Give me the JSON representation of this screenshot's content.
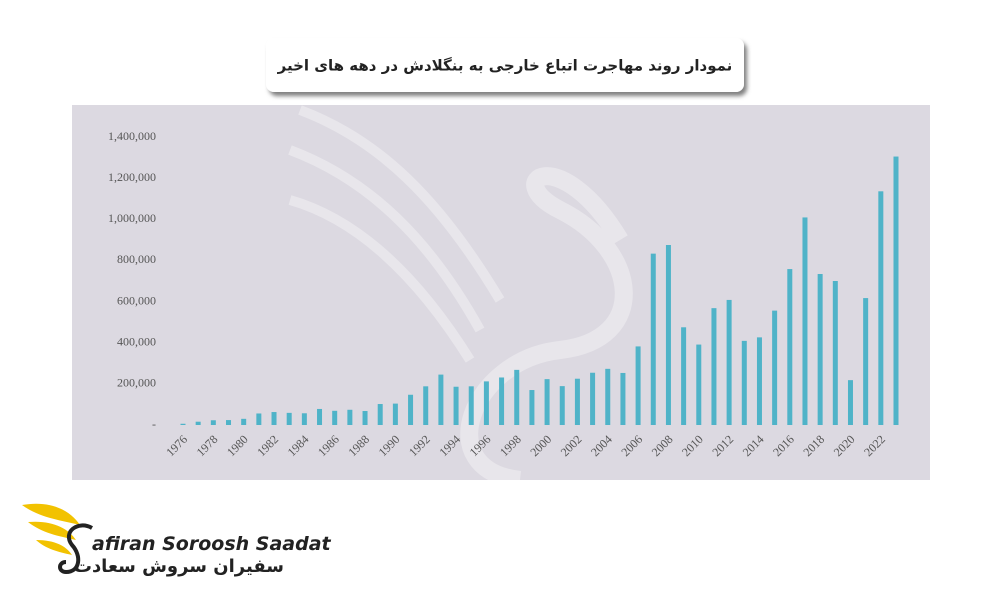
{
  "chart_data": {
    "type": "bar",
    "title": "نمودار روند مهاجرت اتباع خارجی به بنگلادش در دهه های اخیر",
    "brand": "afiran Soroosh Saadat",
    "brand_fa": "سفیران سروش سعادت",
    "categories": [
      "1976",
      null,
      "1978",
      null,
      "1980",
      null,
      "1982",
      null,
      "1984",
      null,
      "1986",
      null,
      "1988",
      null,
      "1990",
      null,
      "1992",
      null,
      "1994",
      null,
      "1996",
      null,
      "1998",
      null,
      "2000",
      null,
      "2002",
      null,
      "2004",
      null,
      "2006",
      null,
      "2008",
      null,
      "2010",
      null,
      "2012",
      null,
      "2014",
      null,
      "2016",
      null,
      "2018",
      null,
      "2020",
      null,
      "2022",
      null
    ],
    "values": [
      6000,
      16000,
      23000,
      24000,
      30000,
      56000,
      63000,
      59000,
      57000,
      78000,
      69000,
      74000,
      68000,
      102000,
      104000,
      147000,
      188000,
      245000,
      186000,
      188000,
      212000,
      231000,
      268000,
      170000,
      223000,
      189000,
      225000,
      254000,
      273000,
      253000,
      382000,
      833000,
      875000,
      475000,
      391000,
      568000,
      608000,
      409000,
      426000,
      556000,
      758000,
      1009000,
      734000,
      700000,
      218000,
      617000,
      1136000,
      1305000
    ],
    "color": "#4fb3c8",
    "ylim": [
      0,
      1400000
    ],
    "yticks": [
      {
        "value": 0,
        "label": "-"
      },
      {
        "value": 200000,
        "label": "200,000"
      },
      {
        "value": 400000,
        "label": "400,000"
      },
      {
        "value": 600000,
        "label": "600,000"
      },
      {
        "value": 800000,
        "label": "800,000"
      },
      {
        "value": 1000000,
        "label": "1,000,000"
      },
      {
        "value": 1200000,
        "label": "1,200,000"
      },
      {
        "value": 1400000,
        "label": "1,400,000"
      }
    ]
  }
}
